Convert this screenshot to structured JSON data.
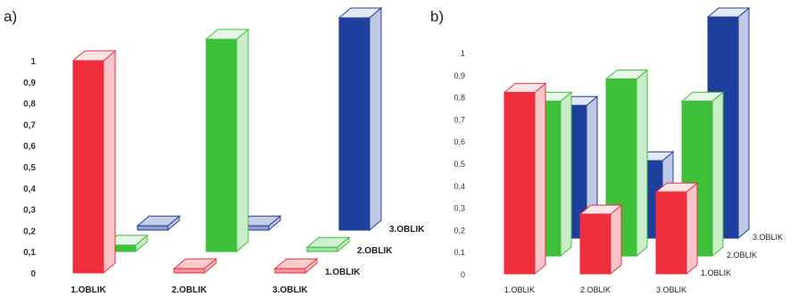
{
  "panels": [
    {
      "letter": "a)",
      "colors": {
        "1.OBLIK": "#ee2f3b",
        "2.OBLIK": "#3dbf3a",
        "3.OBLIK": "#1f3f9e"
      },
      "chart_data": {
        "type": "bar",
        "subtype": "3d-grid",
        "x_categories": [
          "1.OBLIK",
          "2.OBLIK",
          "3.OBLIK"
        ],
        "depth_categories": [
          "1.OBLIK",
          "2.OBLIK",
          "3.OBLIK"
        ],
        "y_ticks": [
          "0",
          "0,1",
          "0,2",
          "0,3",
          "0,4",
          "0,5",
          "0,6",
          "0,7",
          "0,8",
          "0,9",
          "1"
        ],
        "ylim": [
          0,
          1
        ],
        "series": [
          {
            "name": "1.OBLIK",
            "values": [
              1,
              0.02,
              0.02
            ]
          },
          {
            "name": "2.OBLIK",
            "values": [
              0.03,
              1,
              0.02
            ]
          },
          {
            "name": "3.OBLIK",
            "values": [
              0.02,
              0.02,
              1
            ]
          }
        ]
      }
    },
    {
      "letter": "b)",
      "colors": {
        "1.OBLIK": "#ee2f3b",
        "2.OBLIK": "#3dbf3a",
        "3.OBLIK": "#1f3f9e"
      },
      "chart_data": {
        "type": "bar",
        "subtype": "3d-grid",
        "x_categories": [
          "1.OBLIK",
          "2.OBLIK",
          "3.OBLIK"
        ],
        "depth_categories": [
          "1.OBLIK",
          "2.OBLIK",
          "3.OBLIK"
        ],
        "y_ticks": [
          "0",
          "0,1",
          "0,2",
          "0,3",
          "0,4",
          "0,5",
          "0,6",
          "0,7",
          "0,8",
          "0,9",
          "1"
        ],
        "ylim": [
          0,
          1
        ],
        "series": [
          {
            "name": "1.OBLIK",
            "values": [
              0.82,
              0.27,
              0.37
            ]
          },
          {
            "name": "2.OBLIK",
            "values": [
              0.7,
              0.8,
              0.7
            ]
          },
          {
            "name": "3.OBLIK",
            "values": [
              0.6,
              0.35,
              1
            ]
          }
        ]
      }
    }
  ]
}
